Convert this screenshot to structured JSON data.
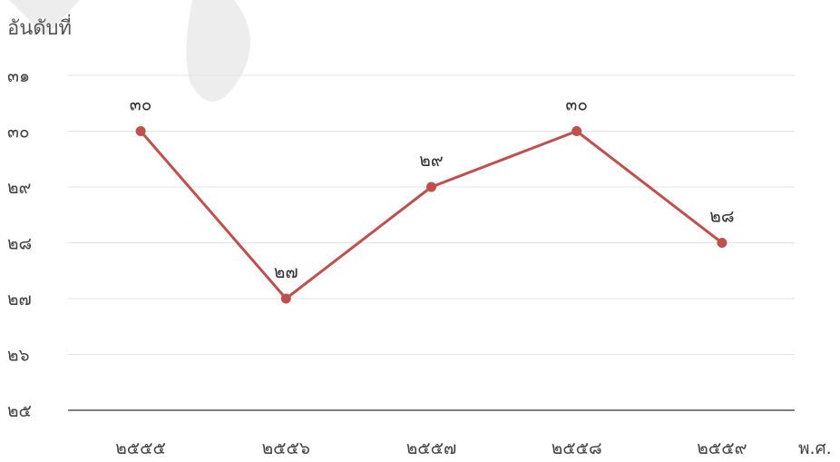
{
  "chart_data": {
    "type": "line",
    "ylabel": "อันดับที่",
    "xlabel": "พ.ศ.",
    "categories": [
      "๒๕๕๕",
      "๒๕๕๖",
      "๒๕๕๗",
      "๒๕๕๘",
      "๒๕๕๙"
    ],
    "x_values": [
      2555,
      2556,
      2557,
      2558,
      2559
    ],
    "values": [
      30,
      27,
      29,
      30,
      28
    ],
    "value_labels": [
      "๓๐",
      "๒๗",
      "๒๙",
      "๓๐",
      "๒๘"
    ],
    "ylim": [
      25,
      31
    ],
    "yticks": [
      31,
      30,
      29,
      28,
      27,
      26,
      25
    ],
    "ytick_labels": [
      "๓๑",
      "๓๐",
      "๒๙",
      "๒๘",
      "๒๗",
      "๒๖",
      "๒๕"
    ],
    "grid": true,
    "legend": "none",
    "line_color": "#c0504d"
  }
}
